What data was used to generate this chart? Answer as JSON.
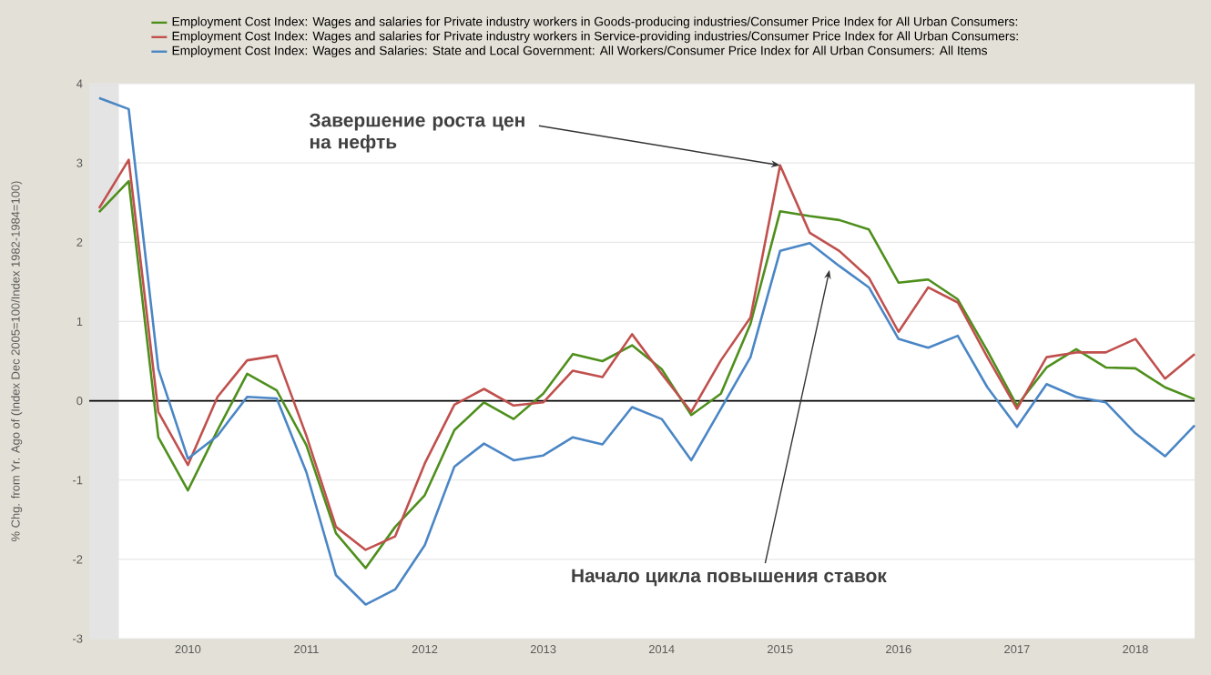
{
  "chart_data": {
    "type": "line",
    "ylabel": "% Chg. from Yr. Ago of (Index Dec 2005=100/Index 1982-1984=100)",
    "x": [
      "2009-04",
      "2009-07",
      "2009-10",
      "2010-01",
      "2010-04",
      "2010-07",
      "2010-10",
      "2011-01",
      "2011-04",
      "2011-07",
      "2011-10",
      "2012-01",
      "2012-04",
      "2012-07",
      "2012-10",
      "2013-01",
      "2013-04",
      "2013-07",
      "2013-10",
      "2014-01",
      "2014-04",
      "2014-07",
      "2014-10",
      "2015-01",
      "2015-04",
      "2015-07",
      "2015-10",
      "2016-01",
      "2016-04",
      "2016-07",
      "2016-10",
      "2017-01",
      "2017-04",
      "2017-07",
      "2017-10",
      "2018-01",
      "2018-04",
      "2018-07"
    ],
    "series": [
      {
        "name": "Employment Cost Index: Wages and salaries for Private industry workers in Goods-producing industries/Consumer Price Index for All Urban Consumers:",
        "color": "#4e8f1c",
        "values": [
          2.38,
          2.77,
          -0.46,
          -1.13,
          -0.37,
          0.34,
          0.13,
          -0.56,
          -1.67,
          -2.11,
          -1.59,
          -1.19,
          -0.37,
          -0.02,
          -0.23,
          0.09,
          0.59,
          0.5,
          0.7,
          0.4,
          -0.18,
          0.09,
          0.97,
          2.39,
          2.33,
          2.28,
          2.16,
          1.49,
          1.53,
          1.28,
          0.63,
          -0.06,
          0.42,
          0.65,
          0.42,
          0.41,
          0.17,
          0.02
        ]
      },
      {
        "name": "Employment Cost Index: Wages and salaries for Private industry workers in Service-providing industries/Consumer Price Index for All Urban Consumers:",
        "color": "#c0504d",
        "values": [
          2.43,
          3.04,
          -0.14,
          -0.81,
          0.05,
          0.51,
          0.57,
          -0.44,
          -1.59,
          -1.88,
          -1.71,
          -0.79,
          -0.05,
          0.15,
          -0.06,
          -0.02,
          0.38,
          0.3,
          0.84,
          0.34,
          -0.14,
          0.51,
          1.05,
          2.97,
          2.12,
          1.89,
          1.55,
          0.87,
          1.43,
          1.24,
          0.55,
          -0.1,
          0.55,
          0.61,
          0.61,
          0.78,
          0.28,
          0.59
        ]
      },
      {
        "name": "Employment Cost Index: Wages and Salaries: State and Local Government: All Workers/Consumer Price Index for All Urban Consumers: All Items",
        "color": "#4a86c5",
        "values": [
          3.82,
          3.68,
          0.4,
          -0.73,
          -0.44,
          0.05,
          0.03,
          -0.9,
          -2.2,
          -2.57,
          -2.38,
          -1.82,
          -0.83,
          -0.54,
          -0.75,
          -0.69,
          -0.46,
          -0.55,
          -0.08,
          -0.23,
          -0.75,
          -0.1,
          0.55,
          1.89,
          1.99,
          1.7,
          1.43,
          0.78,
          0.67,
          0.82,
          0.17,
          -0.33,
          0.21,
          0.05,
          -0.02,
          -0.41,
          -0.7,
          -0.31
        ]
      }
    ],
    "xlim": [
      "2009-03",
      "2018-07"
    ],
    "xticks": [
      "2010",
      "2011",
      "2012",
      "2013",
      "2014",
      "2015",
      "2016",
      "2017",
      "2018"
    ],
    "ylim": [
      -3,
      4
    ],
    "yticks": [
      -3,
      -2,
      -1,
      0,
      1,
      2,
      3,
      4
    ],
    "grid": "y",
    "legend": "top",
    "ref_lines": [
      {
        "axis": "y",
        "value": 0,
        "color": "#000000"
      }
    ],
    "bands": [
      {
        "axis": "x",
        "from": "2009-03",
        "to": "2009-06",
        "color": "#e4e4e4"
      }
    ],
    "annotations": [
      {
        "text": "Завершение роста цен на нефть",
        "x": "2015-01",
        "y": 2.97
      },
      {
        "text": "Начало цикла повышения ставок",
        "x": "2015-06",
        "y": 1.65
      }
    ]
  }
}
